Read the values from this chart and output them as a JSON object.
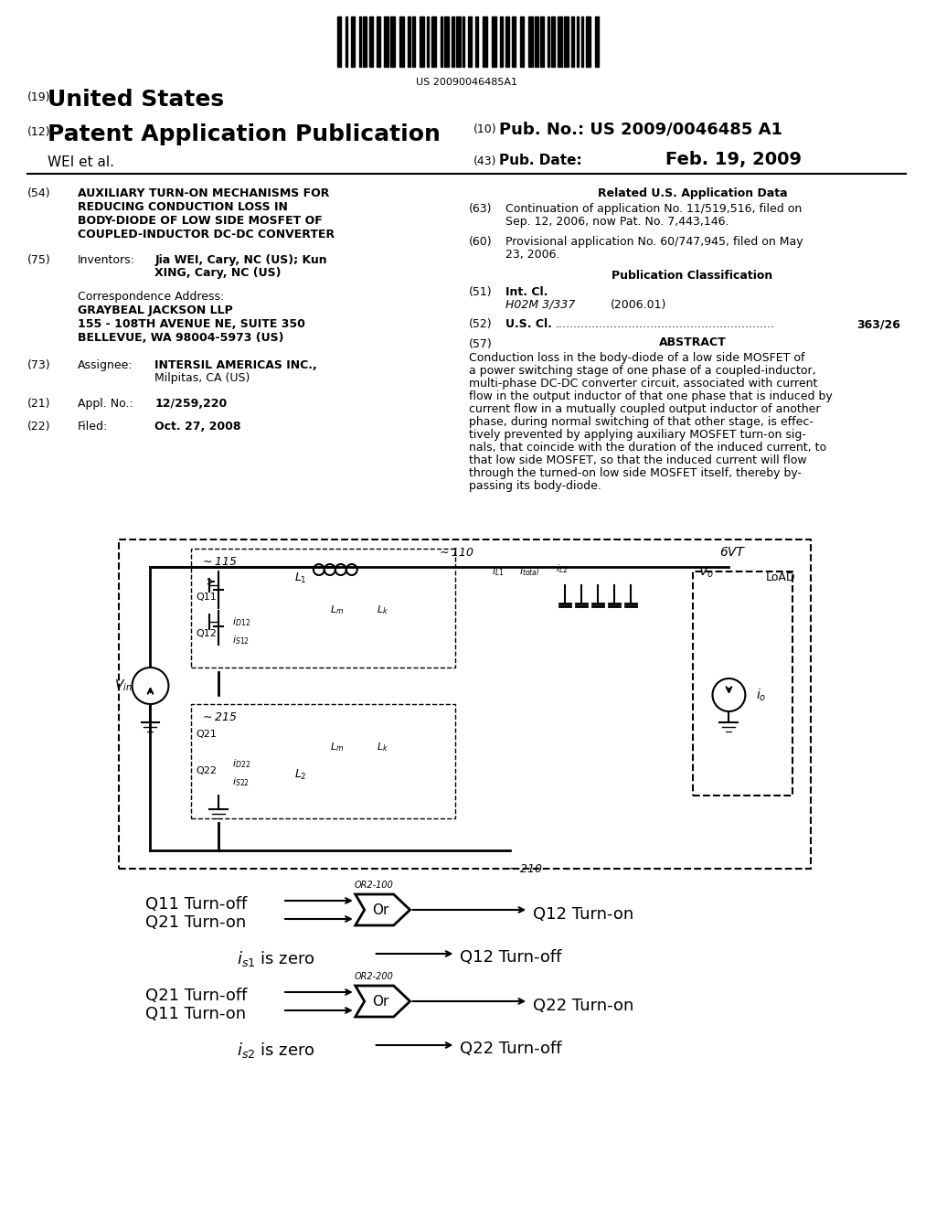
{
  "background_color": "#ffffff",
  "barcode_text": "US 20090046485A1",
  "country": "United States",
  "pub_type": "Patent Application Publication",
  "num_19": "(19)",
  "num_12": "(12)",
  "num_10": "(10)",
  "num_43": "(43)",
  "pub_no_label": "Pub. No.:",
  "pub_no_value": "US 2009/0046485 A1",
  "pub_date_label": "Pub. Date:",
  "pub_date_value": "Feb. 19, 2009",
  "inventor_label": "WEI et al.",
  "title_num": "(54)",
  "title_text": "AUXILIARY TURN-ON MECHANISMS FOR\nREDUCING CONDUCTION LOSS IN\nBODY-DIODE OF LOW SIDE MOSFET OF\nCOUPLED-INDUCTOR DC-DC CONVERTER",
  "inventors_num": "(75)",
  "inventors_label": "Inventors:",
  "inventors_value": "Jia WEI, Cary, NC (US); Kun\nXING, Cary, NC (US)",
  "corr_label": "Correspondence Address:",
  "corr_name": "GRAYBEAL JACKSON LLP",
  "corr_addr1": "155 - 108TH AVENUE NE, SUITE 350",
  "corr_addr2": "BELLEVUE, WA 98004-5973 (US)",
  "assignee_num": "(73)",
  "assignee_label": "Assignee:",
  "assignee_value": "INTERSIL AMERICAS INC.,\nMilpitas, CA (US)",
  "appl_num": "(21)",
  "appl_label": "Appl. No.:",
  "appl_value": "12/259,220",
  "filed_num": "(22)",
  "filed_label": "Filed:",
  "filed_value": "Oct. 27, 2008",
  "related_title": "Related U.S. Application Data",
  "related_63": "(63)",
  "related_63_text": "Continuation of application No. 11/519,516, filed on\nSep. 12, 2006, now Pat. No. 7,443,146.",
  "related_60": "(60)",
  "related_60_text": "Provisional application No. 60/747,945, filed on May\n23, 2006.",
  "pub_class_title": "Publication Classification",
  "intcl_num": "(51)",
  "intcl_label": "Int. Cl.",
  "intcl_value": "H02M 3/337",
  "intcl_year": "(2006.01)",
  "uscl_num": "(52)",
  "uscl_label": "U.S. Cl.",
  "uscl_dots": "............................................................",
  "uscl_value": "363/26",
  "abstract_num": "(57)",
  "abstract_title": "ABSTRACT",
  "abstract_text": "Conduction loss in the body-diode of a low side MOSFET of\na power switching stage of one phase of a coupled-inductor,\nmulti-phase DC-DC converter circuit, associated with current\nflow in the output inductor of that one phase that is induced by\ncurrent flow in a mutually coupled output inductor of another\nphase, during normal switching of that other stage, is effec-\ntively prevented by applying auxiliary MOSFET turn-on sig-\nnals, that coincide with the duration of the induced current, to\nthat low side MOSFET, so that the induced current will flow\nthrough the turned-on low side MOSFET itself, thereby by-\npassing its body-diode.",
  "logic_line1_left": "Q11 Turn-off",
  "logic_line2_left": "Q21 Turn-on",
  "logic_gate1": "Or",
  "logic_gate1_label": "OR2-100",
  "logic_output1": "Q12 Turn-on",
  "logic_mid": "iₛ₁ is zero",
  "logic_mid_output": "Q12 Turn-off",
  "logic_line3_left": "Q21 Turn-off",
  "logic_line4_left": "Q11 Turn-on",
  "logic_gate2": "Or",
  "logic_gate2_label": "OR2-200",
  "logic_output2": "Q22 Turn-on",
  "logic_bot": "iₛ₂ is zero",
  "logic_bot_output": "Q22 Turn-off"
}
